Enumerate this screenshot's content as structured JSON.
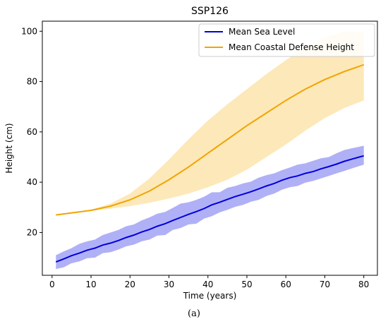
{
  "caption": "(a)",
  "chart_data": {
    "type": "line",
    "title": "SSP126",
    "xlabel": "Time (years)",
    "ylabel": "Height (cm)",
    "xlim": [
      -2.5,
      83.5
    ],
    "ylim": [
      3,
      104
    ],
    "xticks": [
      0,
      10,
      20,
      30,
      40,
      50,
      60,
      70,
      80
    ],
    "yticks": [
      20,
      40,
      60,
      80,
      100
    ],
    "legend_position": "top-right",
    "grid": false,
    "series": [
      {
        "name": "Mean Sea Level",
        "color": "#0000dd",
        "band_color": "#7b7bf0",
        "x": [
          1,
          3,
          5,
          7,
          9,
          11,
          13,
          15,
          17,
          19,
          21,
          23,
          25,
          27,
          29,
          31,
          33,
          35,
          37,
          39,
          41,
          43,
          45,
          47,
          49,
          51,
          53,
          55,
          57,
          59,
          61,
          63,
          65,
          67,
          69,
          71,
          73,
          75,
          77,
          80
        ],
        "values": [
          8.3,
          9.5,
          10.8,
          11.8,
          13.0,
          13.8,
          15.0,
          15.8,
          16.8,
          18.0,
          19.0,
          20.2,
          21.2,
          22.5,
          23.5,
          24.8,
          26.0,
          27.2,
          28.3,
          29.5,
          31.0,
          32.0,
          33.2,
          34.3,
          35.2,
          36.2,
          37.3,
          38.5,
          39.5,
          40.8,
          41.8,
          42.5,
          43.5,
          44.2,
          45.3,
          46.2,
          47.2,
          48.3,
          49.2,
          50.5
        ],
        "lower": [
          5.5,
          6.2,
          7.8,
          8.5,
          9.8,
          10.0,
          11.8,
          12.2,
          13.2,
          14.5,
          15.2,
          16.5,
          17.2,
          18.8,
          19.0,
          21.0,
          21.8,
          23.2,
          23.5,
          25.5,
          26.5,
          28.0,
          29.0,
          30.2,
          31.0,
          32.2,
          33.0,
          34.5,
          35.5,
          37.0,
          38.0,
          38.5,
          39.8,
          40.5,
          41.5,
          42.5,
          43.5,
          44.5,
          45.5,
          47.0
        ],
        "upper": [
          11.0,
          12.5,
          13.8,
          15.5,
          16.5,
          17.2,
          19.0,
          20.0,
          21.0,
          22.5,
          23.2,
          24.8,
          26.0,
          27.5,
          28.2,
          29.8,
          31.5,
          32.0,
          33.0,
          34.2,
          36.0,
          36.0,
          37.8,
          38.5,
          39.5,
          40.2,
          41.8,
          42.8,
          43.5,
          44.8,
          45.8,
          47.0,
          47.5,
          48.5,
          49.5,
          50.0,
          51.5,
          52.8,
          53.5,
          54.5
        ]
      },
      {
        "name": "Mean Coastal Defense Height",
        "color": "#f0a500",
        "band_color": "#fcd98a",
        "x": [
          1,
          5,
          10,
          15,
          20,
          25,
          30,
          35,
          40,
          45,
          50,
          55,
          60,
          65,
          70,
          75,
          80
        ],
        "values": [
          27.0,
          27.8,
          28.8,
          30.5,
          33.0,
          36.5,
          41.0,
          46.0,
          51.5,
          57.0,
          62.5,
          67.5,
          72.5,
          77.0,
          80.8,
          84.0,
          86.7
        ],
        "lower": [
          27.0,
          27.8,
          28.5,
          29.5,
          30.5,
          31.8,
          33.5,
          35.5,
          38.0,
          41.0,
          45.0,
          50.0,
          55.0,
          60.5,
          65.5,
          69.5,
          72.5
        ],
        "upper": [
          27.0,
          27.8,
          29.0,
          31.5,
          35.5,
          41.5,
          49.0,
          57.0,
          64.5,
          71.0,
          77.0,
          83.0,
          88.5,
          93.5,
          97.5,
          100.0,
          100.0
        ]
      }
    ]
  }
}
